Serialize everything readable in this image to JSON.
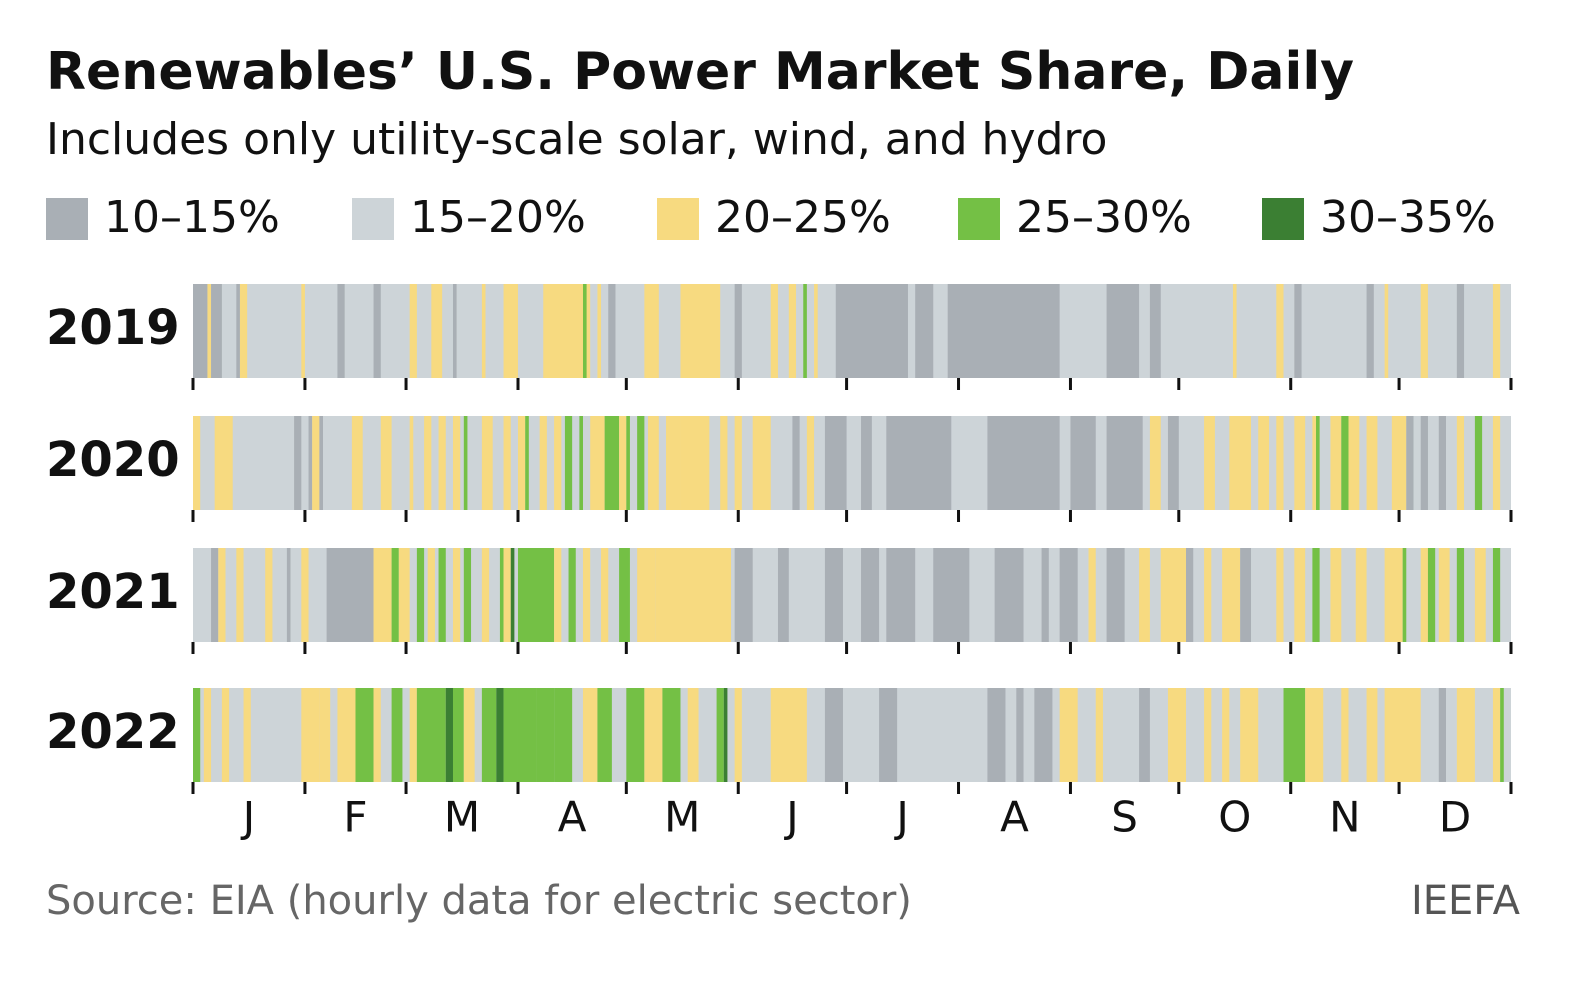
{
  "chart_data": {
    "type": "strip-heatmap",
    "title": "Renewables’ U.S. Power Market Share, Daily",
    "subtitle": "Includes only utility-scale solar, wind, and hydro",
    "bins": [
      {
        "label": "10–15%",
        "color": "#a9afb5"
      },
      {
        "label": "15–20%",
        "color": "#cdd4d8"
      },
      {
        "label": "20–25%",
        "color": "#f7da80"
      },
      {
        "label": "25–30%",
        "color": "#74c045"
      },
      {
        "label": "30–35%",
        "color": "#3b7f33"
      }
    ],
    "categories": [
      "J",
      "F",
      "M",
      "A",
      "M",
      "J",
      "J",
      "A",
      "S",
      "O",
      "N",
      "D"
    ],
    "xlim": [
      0,
      365
    ],
    "xticks": [
      0,
      31,
      59,
      90,
      120,
      151,
      181,
      212,
      243,
      273,
      304,
      334,
      365
    ],
    "series": [
      {
        "name": "2019",
        "base_bin": 1,
        "segments": [
          [
            0,
            4,
            0
          ],
          [
            4,
            5,
            2
          ],
          [
            5,
            8,
            0
          ],
          [
            12,
            13,
            0
          ],
          [
            13,
            15,
            2
          ],
          [
            30,
            31,
            2
          ],
          [
            40,
            42,
            0
          ],
          [
            50,
            52,
            0
          ],
          [
            60,
            62,
            2
          ],
          [
            66,
            69,
            2
          ],
          [
            72,
            73,
            0
          ],
          [
            80,
            81,
            2
          ],
          [
            86,
            90,
            2
          ],
          [
            97,
            110,
            2
          ],
          [
            108,
            109,
            3
          ],
          [
            112,
            113,
            2
          ],
          [
            115,
            117,
            0
          ],
          [
            125,
            129,
            2
          ],
          [
            135,
            146,
            2
          ],
          [
            150,
            152,
            0
          ],
          [
            160,
            162,
            2
          ],
          [
            165,
            167,
            2
          ],
          [
            169,
            170,
            3
          ],
          [
            172,
            173,
            2
          ],
          [
            178,
            198,
            0
          ],
          [
            200,
            205,
            0
          ],
          [
            209,
            240,
            0
          ],
          [
            253,
            262,
            0
          ],
          [
            265,
            268,
            0
          ],
          [
            288,
            289,
            2
          ],
          [
            300,
            302,
            2
          ],
          [
            305,
            307,
            0
          ],
          [
            325,
            327,
            0
          ],
          [
            330,
            331,
            2
          ],
          [
            340,
            342,
            2
          ],
          [
            350,
            352,
            0
          ],
          [
            360,
            362,
            2
          ]
        ]
      },
      {
        "name": "2020",
        "base_bin": 1,
        "segments": [
          [
            0,
            2,
            2
          ],
          [
            6,
            11,
            2
          ],
          [
            28,
            30,
            0
          ],
          [
            32,
            33,
            0
          ],
          [
            33,
            35,
            2
          ],
          [
            35,
            36,
            0
          ],
          [
            44,
            47,
            2
          ],
          [
            52,
            55,
            2
          ],
          [
            60,
            61,
            2
          ],
          [
            64,
            66,
            2
          ],
          [
            68,
            70,
            2
          ],
          [
            72,
            74,
            2
          ],
          [
            75,
            76,
            3
          ],
          [
            80,
            83,
            2
          ],
          [
            86,
            88,
            2
          ],
          [
            90,
            92,
            2
          ],
          [
            92,
            93,
            3
          ],
          [
            96,
            98,
            2
          ],
          [
            100,
            102,
            2
          ],
          [
            103,
            105,
            3
          ],
          [
            107,
            108,
            3
          ],
          [
            110,
            114,
            2
          ],
          [
            114,
            118,
            3
          ],
          [
            118,
            120,
            2
          ],
          [
            120,
            121,
            3
          ],
          [
            123,
            125,
            3
          ],
          [
            126,
            129,
            2
          ],
          [
            131,
            135,
            2
          ],
          [
            135,
            143,
            2
          ],
          [
            146,
            148,
            2
          ],
          [
            150,
            152,
            2
          ],
          [
            155,
            160,
            2
          ],
          [
            166,
            168,
            0
          ],
          [
            170,
            172,
            2
          ],
          [
            175,
            181,
            0
          ],
          [
            185,
            188,
            0
          ],
          [
            192,
            210,
            0
          ],
          [
            220,
            240,
            0
          ],
          [
            243,
            250,
            0
          ],
          [
            253,
            263,
            0
          ],
          [
            265,
            268,
            2
          ],
          [
            270,
            273,
            0
          ],
          [
            280,
            283,
            2
          ],
          [
            287,
            293,
            2
          ],
          [
            295,
            298,
            2
          ],
          [
            300,
            302,
            2
          ],
          [
            305,
            308,
            2
          ],
          [
            310,
            312,
            2
          ],
          [
            311,
            312,
            3
          ],
          [
            315,
            318,
            2
          ],
          [
            318,
            320,
            3
          ],
          [
            320,
            323,
            2
          ],
          [
            325,
            328,
            2
          ],
          [
            332,
            336,
            2
          ],
          [
            336,
            338,
            0
          ],
          [
            340,
            342,
            0
          ],
          [
            345,
            347,
            0
          ],
          [
            350,
            352,
            2
          ],
          [
            355,
            357,
            3
          ],
          [
            360,
            362,
            2
          ]
        ]
      },
      {
        "name": "2021",
        "base_bin": 1,
        "segments": [
          [
            5,
            7,
            0
          ],
          [
            7,
            9,
            2
          ],
          [
            12,
            14,
            2
          ],
          [
            20,
            22,
            2
          ],
          [
            26,
            27,
            0
          ],
          [
            30,
            32,
            2
          ],
          [
            37,
            50,
            0
          ],
          [
            50,
            55,
            2
          ],
          [
            55,
            57,
            3
          ],
          [
            57,
            60,
            2
          ],
          [
            62,
            64,
            3
          ],
          [
            65,
            67,
            2
          ],
          [
            68,
            70,
            3
          ],
          [
            72,
            74,
            2
          ],
          [
            75,
            77,
            3
          ],
          [
            80,
            82,
            2
          ],
          [
            85,
            86,
            3
          ],
          [
            86,
            88,
            2
          ],
          [
            88,
            89,
            4
          ],
          [
            90,
            100,
            3
          ],
          [
            100,
            102,
            2
          ],
          [
            104,
            106,
            3
          ],
          [
            108,
            110,
            2
          ],
          [
            113,
            115,
            2
          ],
          [
            118,
            121,
            3
          ],
          [
            123,
            128,
            2
          ],
          [
            128,
            149,
            2
          ],
          [
            150,
            155,
            0
          ],
          [
            162,
            165,
            0
          ],
          [
            175,
            180,
            0
          ],
          [
            185,
            190,
            0
          ],
          [
            192,
            200,
            0
          ],
          [
            205,
            215,
            0
          ],
          [
            222,
            230,
            0
          ],
          [
            235,
            237,
            0
          ],
          [
            240,
            245,
            0
          ],
          [
            248,
            250,
            2
          ],
          [
            253,
            258,
            0
          ],
          [
            262,
            265,
            2
          ],
          [
            268,
            275,
            2
          ],
          [
            275,
            277,
            0
          ],
          [
            280,
            282,
            2
          ],
          [
            285,
            290,
            2
          ],
          [
            290,
            293,
            0
          ],
          [
            300,
            302,
            2
          ],
          [
            305,
            308,
            2
          ],
          [
            310,
            312,
            3
          ],
          [
            315,
            318,
            2
          ],
          [
            322,
            325,
            2
          ],
          [
            330,
            335,
            2
          ],
          [
            335,
            336,
            3
          ],
          [
            340,
            342,
            2
          ],
          [
            342,
            344,
            3
          ],
          [
            345,
            348,
            2
          ],
          [
            350,
            352,
            3
          ],
          [
            355,
            358,
            2
          ],
          [
            360,
            362,
            3
          ]
        ]
      },
      {
        "name": "2022",
        "base_bin": 1,
        "segments": [
          [
            0,
            2,
            3
          ],
          [
            3,
            5,
            2
          ],
          [
            8,
            10,
            2
          ],
          [
            14,
            16,
            2
          ],
          [
            30,
            35,
            2
          ],
          [
            35,
            38,
            2
          ],
          [
            40,
            45,
            2
          ],
          [
            45,
            50,
            3
          ],
          [
            50,
            52,
            2
          ],
          [
            55,
            58,
            3
          ],
          [
            60,
            62,
            2
          ],
          [
            62,
            70,
            3
          ],
          [
            70,
            72,
            4
          ],
          [
            72,
            75,
            3
          ],
          [
            75,
            78,
            2
          ],
          [
            80,
            84,
            3
          ],
          [
            84,
            86,
            4
          ],
          [
            86,
            90,
            3
          ],
          [
            90,
            95,
            3
          ],
          [
            95,
            100,
            3
          ],
          [
            100,
            105,
            3
          ],
          [
            108,
            112,
            2
          ],
          [
            112,
            116,
            3
          ],
          [
            120,
            125,
            3
          ],
          [
            125,
            130,
            2
          ],
          [
            130,
            135,
            3
          ],
          [
            137,
            140,
            2
          ],
          [
            145,
            147,
            3
          ],
          [
            147,
            148,
            4
          ],
          [
            150,
            152,
            2
          ],
          [
            160,
            170,
            2
          ],
          [
            175,
            180,
            0
          ],
          [
            190,
            195,
            0
          ],
          [
            220,
            225,
            0
          ],
          [
            228,
            230,
            0
          ],
          [
            233,
            238,
            0
          ],
          [
            240,
            245,
            2
          ],
          [
            250,
            252,
            2
          ],
          [
            262,
            265,
            0
          ],
          [
            270,
            275,
            2
          ],
          [
            280,
            282,
            2
          ],
          [
            285,
            287,
            2
          ],
          [
            290,
            295,
            2
          ],
          [
            302,
            308,
            3
          ],
          [
            308,
            313,
            2
          ],
          [
            318,
            320,
            2
          ],
          [
            325,
            328,
            2
          ],
          [
            330,
            340,
            2
          ],
          [
            345,
            347,
            0
          ],
          [
            350,
            355,
            2
          ],
          [
            360,
            362,
            2
          ],
          [
            362,
            363,
            3
          ]
        ]
      }
    ],
    "source": "Source: EIA (hourly data for electric sector)",
    "brand": "IEEFA"
  }
}
